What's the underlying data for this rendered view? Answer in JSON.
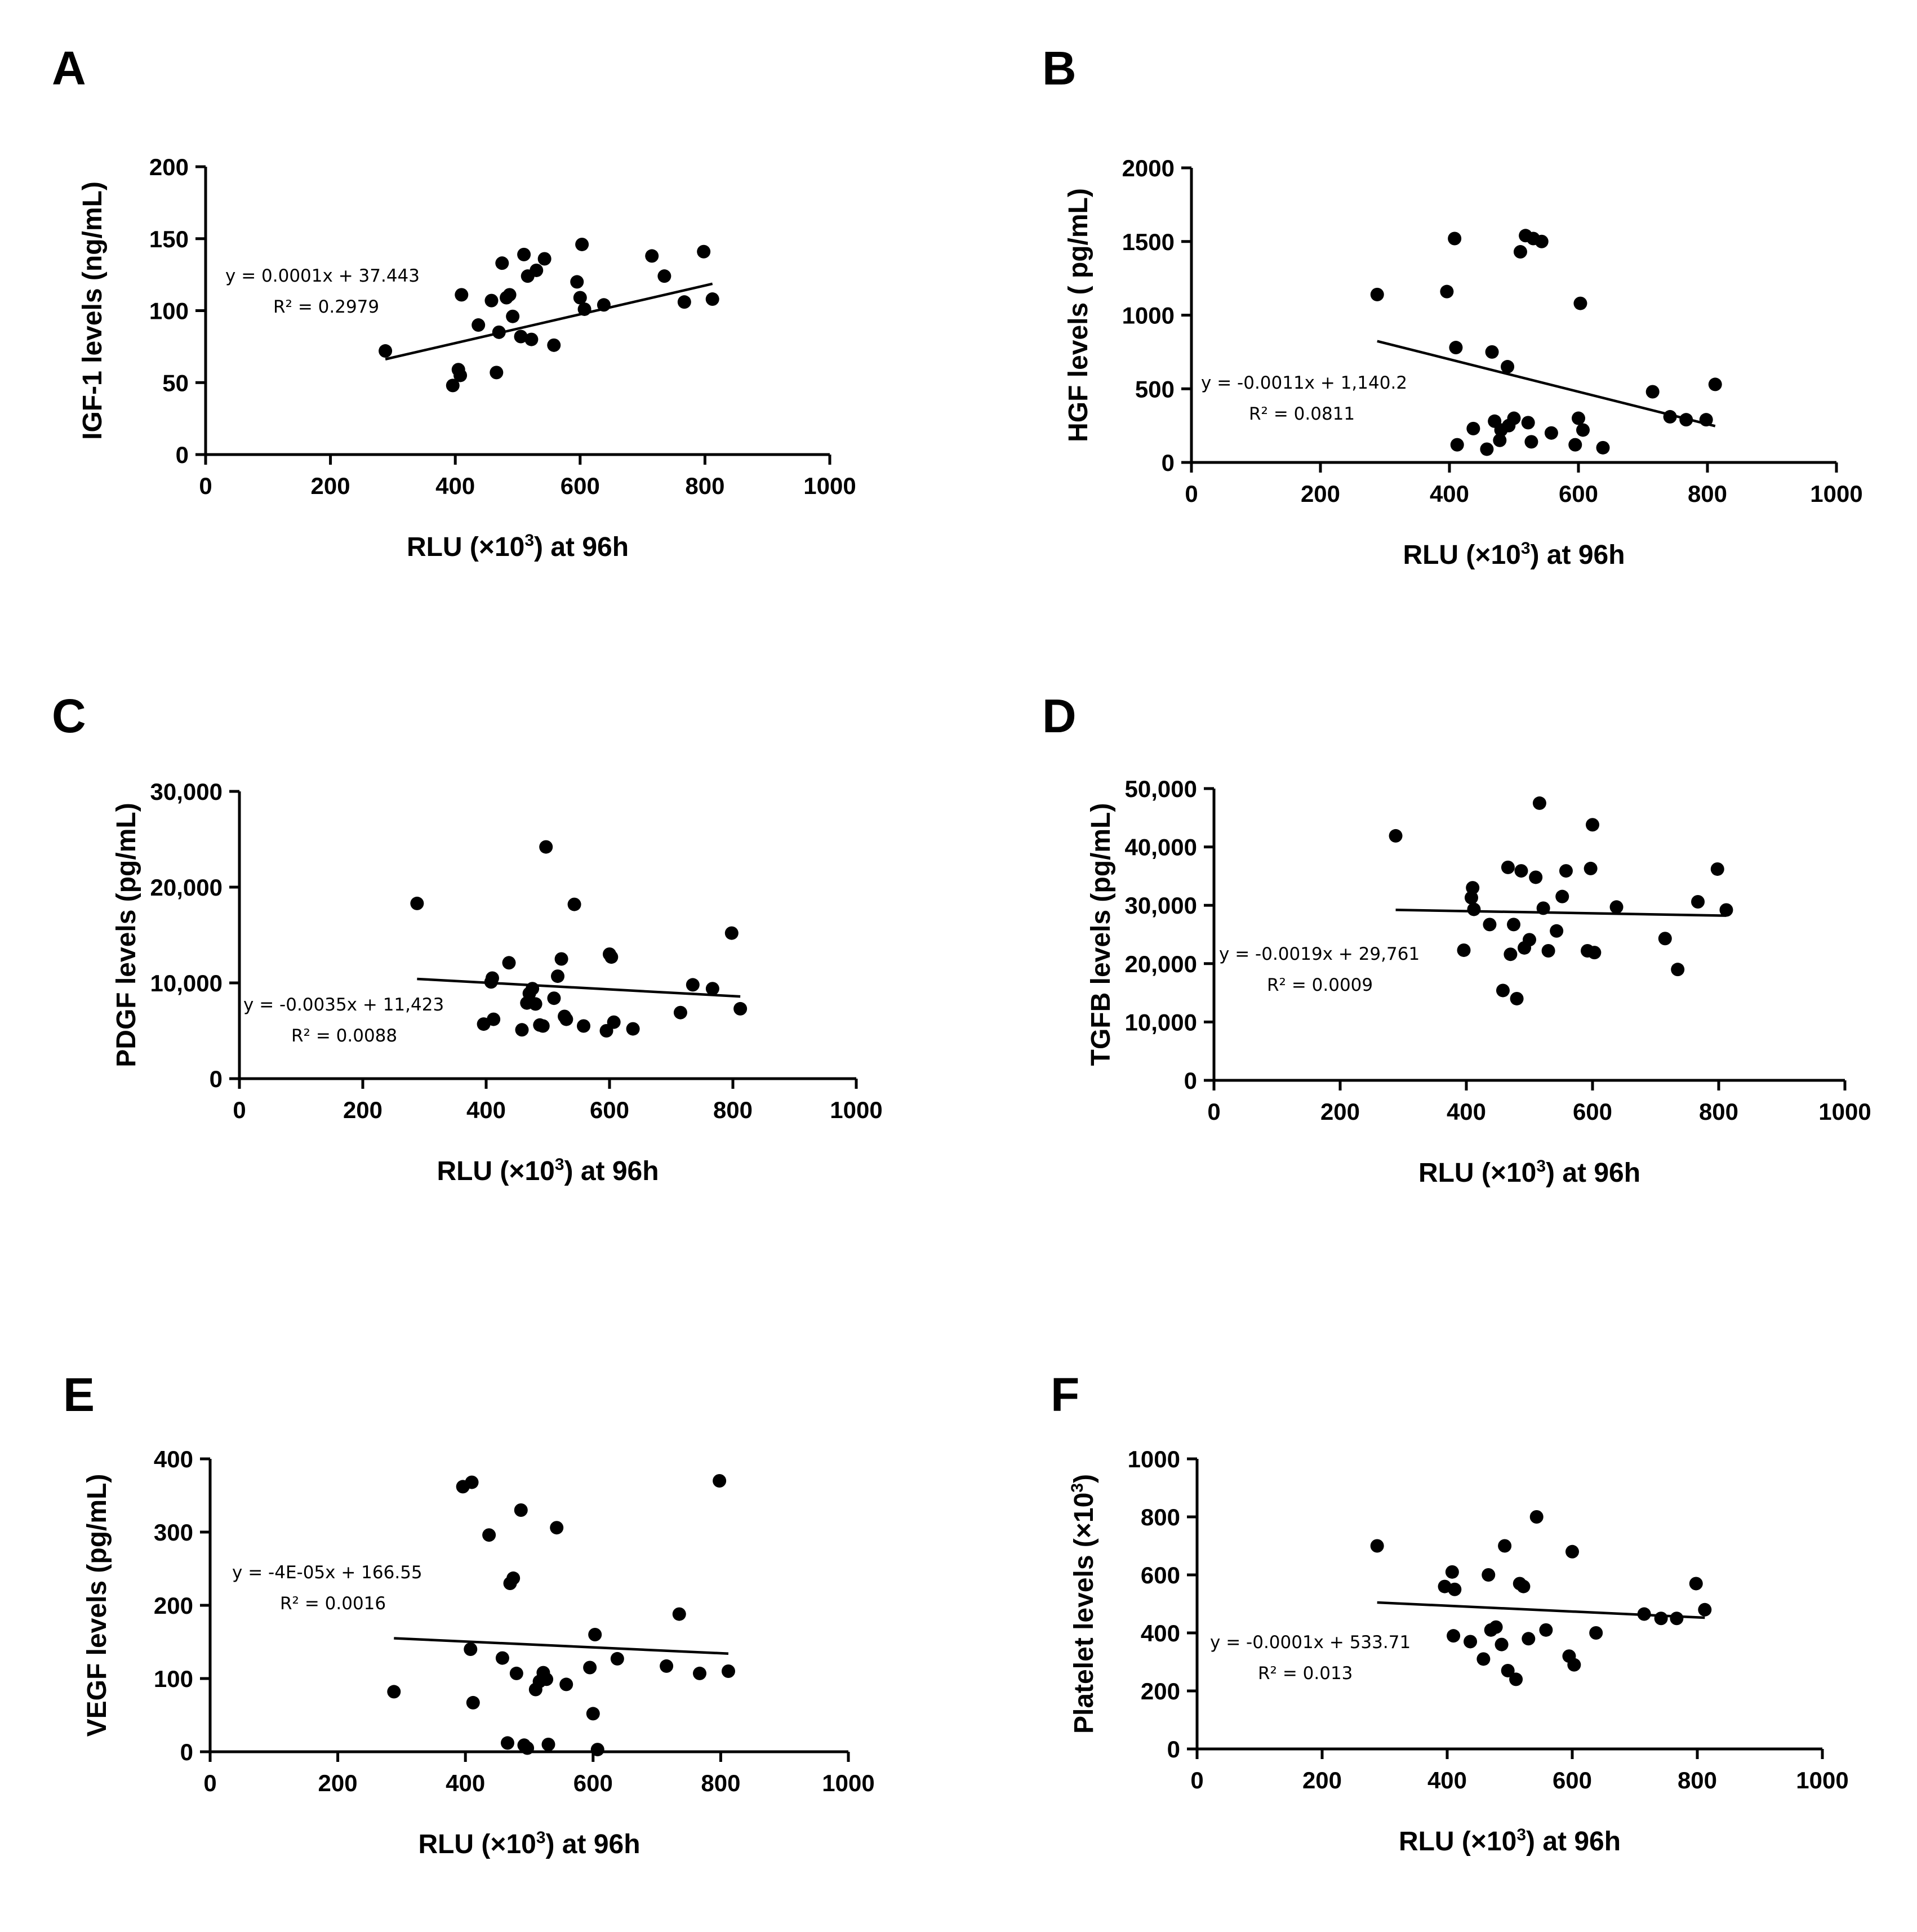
{
  "figure": {
    "background": "#ffffff",
    "ink": "#000000"
  },
  "chart_data": [
    {
      "panel": "A",
      "type": "scatter",
      "title": "",
      "xlabel": "RLU (×10³) at 96h",
      "xlabel_parts": {
        "before": "RLU (×10",
        "sup": "3",
        "after": ") at 96h"
      },
      "ylabel": "IGF-1 levels (ng/mL)",
      "xlim": [
        0,
        1000
      ],
      "ylim": [
        0,
        200
      ],
      "xticks": [
        0,
        200,
        400,
        600,
        800,
        1000
      ],
      "yticks": [
        0,
        50,
        100,
        150,
        200
      ],
      "xtick_labels": [
        "0",
        "200",
        "400",
        "600",
        "800",
        "1000"
      ],
      "ytick_labels": [
        "0",
        "50",
        "100",
        "150",
        "200"
      ],
      "grid": false,
      "trendline": {
        "slope": 0.1,
        "intercept": 37.443,
        "x_range": [
          288,
          812
        ]
      },
      "annotation": {
        "line1": "y = 0.0001x + 37.443",
        "line2": "R² = 0.2979"
      },
      "x": [
        288,
        396,
        405,
        408,
        410,
        437,
        458,
        466,
        470,
        475,
        482,
        487,
        492,
        505,
        510,
        516,
        522,
        530,
        543,
        558,
        595,
        600,
        603,
        607,
        638,
        715,
        735,
        767,
        798,
        812
      ],
      "y": [
        72,
        48,
        59,
        55,
        111,
        90,
        107,
        57,
        85,
        133,
        109,
        111,
        96,
        82,
        139,
        124,
        80,
        128,
        136,
        76,
        120,
        109,
        146,
        101,
        104,
        138,
        124,
        106,
        141,
        108
      ]
    },
    {
      "panel": "B",
      "type": "scatter",
      "title": "",
      "xlabel": "RLU (×10³) at 96h",
      "xlabel_parts": {
        "before": "RLU (×10",
        "sup": "3",
        "after": ") at 96h"
      },
      "ylabel": "HGF levels ( pg/mL)",
      "xlim": [
        0,
        1000
      ],
      "ylim": [
        0,
        2000
      ],
      "xticks": [
        0,
        200,
        400,
        600,
        800,
        1000
      ],
      "yticks": [
        0,
        500,
        1000,
        1500,
        2000
      ],
      "xtick_labels": [
        "0",
        "200",
        "400",
        "600",
        "800",
        "1000"
      ],
      "ytick_labels": [
        "0",
        "500",
        "1000",
        "1500",
        "2000"
      ],
      "grid": false,
      "trendline": {
        "slope": -1.1,
        "intercept": 1140.2,
        "x_range": [
          288,
          812
        ]
      },
      "annotation": {
        "line1": "y = -0.0011x + 1,140.2",
        "line2": "R² = 0.0811"
      },
      "x": [
        288,
        396,
        408,
        410,
        412,
        437,
        458,
        466,
        470,
        478,
        480,
        490,
        492,
        500,
        510,
        518,
        522,
        527,
        530,
        543,
        558,
        595,
        600,
        603,
        607,
        638,
        715,
        742,
        767,
        798,
        812
      ],
      "y": [
        1140,
        1160,
        1520,
        780,
        120,
        230,
        90,
        750,
        280,
        150,
        220,
        650,
        250,
        300,
        1430,
        1540,
        270,
        140,
        1520,
        1500,
        200,
        120,
        300,
        1080,
        220,
        100,
        480,
        310,
        290,
        290,
        530
      ]
    },
    {
      "panel": "C",
      "type": "scatter",
      "title": "",
      "xlabel": "RLU (×10³) at 96h",
      "xlabel_parts": {
        "before": "RLU (×10",
        "sup": "3",
        "after": ") at 96h"
      },
      "ylabel": "PDGF levels (pg/mL)",
      "xlim": [
        0,
        1000
      ],
      "ylim": [
        0,
        30000
      ],
      "xticks": [
        0,
        200,
        400,
        600,
        800,
        1000
      ],
      "yticks": [
        0,
        10000,
        20000,
        30000
      ],
      "xtick_labels": [
        "0",
        "200",
        "400",
        "600",
        "800",
        "1000"
      ],
      "ytick_labels": [
        "0",
        "10,000",
        "20,000",
        "30,000"
      ],
      "grid": false,
      "trendline": {
        "slope": -3.5,
        "intercept": 11423,
        "x_range": [
          288,
          812
        ]
      },
      "annotation": {
        "line1": "y = -0.0035x + 11,423",
        "line2": "R² = 0.0088"
      },
      "x": [
        288,
        396,
        408,
        410,
        412,
        437,
        458,
        466,
        470,
        475,
        480,
        487,
        492,
        497,
        510,
        516,
        522,
        527,
        530,
        543,
        558,
        595,
        600,
        603,
        607,
        638,
        715,
        735,
        767,
        798,
        812
      ],
      "y": [
        18300,
        5700,
        10100,
        10500,
        6200,
        12100,
        5100,
        7900,
        8900,
        9400,
        7800,
        5600,
        5500,
        24200,
        8400,
        10700,
        12500,
        6500,
        6200,
        18200,
        5500,
        5000,
        13000,
        12700,
        5900,
        5200,
        6900,
        9800,
        9400,
        15200,
        7300
      ]
    },
    {
      "panel": "D",
      "type": "scatter",
      "title": "",
      "xlabel": "RLU (×10³) at 96h",
      "xlabel_parts": {
        "before": "RLU (×10",
        "sup": "3",
        "after": ") at 96h"
      },
      "ylabel": "TGFB levels (pg/mL)",
      "xlim": [
        0,
        1000
      ],
      "ylim": [
        0,
        50000
      ],
      "xticks": [
        0,
        200,
        400,
        600,
        800,
        1000
      ],
      "yticks": [
        0,
        10000,
        20000,
        30000,
        40000,
        50000
      ],
      "xtick_labels": [
        "0",
        "200",
        "400",
        "600",
        "800",
        "1000"
      ],
      "ytick_labels": [
        "0",
        "10,000",
        "20,000",
        "30,000",
        "40,000",
        "50,000"
      ],
      "grid": false,
      "trendline": {
        "slope": -1.9,
        "intercept": 29761,
        "x_range": [
          288,
          812
        ]
      },
      "annotation": {
        "line1": "y = -0.0019x + 29,761",
        "line2": "R² = 0.0009"
      },
      "x": [
        288,
        396,
        408,
        410,
        412,
        437,
        458,
        466,
        470,
        475,
        480,
        487,
        492,
        500,
        510,
        516,
        522,
        530,
        543,
        552,
        558,
        592,
        597,
        600,
        603,
        638,
        715,
        735,
        767,
        798,
        812
      ],
      "y": [
        41900,
        22300,
        31300,
        33000,
        29300,
        26700,
        15400,
        36500,
        21600,
        26700,
        14000,
        35900,
        22700,
        24100,
        34800,
        47500,
        29500,
        22200,
        25600,
        31500,
        35900,
        22200,
        36300,
        43800,
        21900,
        29700,
        24300,
        19000,
        30600,
        36200,
        29200
      ]
    },
    {
      "panel": "E",
      "type": "scatter",
      "title": "",
      "xlabel": "RLU (×10³) at 96h",
      "xlabel_parts": {
        "before": "RLU (×10",
        "sup": "3",
        "after": ") at 96h"
      },
      "ylabel": "VEGF levels (pg/mL)",
      "xlim": [
        0,
        1000
      ],
      "ylim": [
        0,
        400
      ],
      "xticks": [
        0,
        200,
        400,
        600,
        800,
        1000
      ],
      "yticks": [
        0,
        100,
        200,
        300,
        400
      ],
      "xtick_labels": [
        "0",
        "200",
        "400",
        "600",
        "800",
        "1000"
      ],
      "ytick_labels": [
        "0",
        "100",
        "200",
        "300",
        "400"
      ],
      "grid": false,
      "trendline": {
        "slope": -0.04,
        "intercept": 166.55,
        "x_range": [
          288,
          812
        ]
      },
      "annotation": {
        "line1": "y = -4E-05x + 166.55",
        "line2": "R² = 0.0016"
      },
      "x": [
        288,
        396,
        408,
        410,
        412,
        437,
        458,
        466,
        470,
        475,
        480,
        487,
        492,
        497,
        510,
        516,
        522,
        527,
        530,
        543,
        558,
        595,
        600,
        603,
        607,
        638,
        715,
        735,
        767,
        798,
        812
      ],
      "y": [
        82,
        362,
        140,
        368,
        67,
        296,
        128,
        12,
        230,
        237,
        107,
        330,
        9,
        5,
        85,
        96,
        108,
        99,
        10,
        306,
        92,
        115,
        52,
        160,
        3,
        127,
        117,
        188,
        107,
        370,
        110
      ]
    },
    {
      "panel": "F",
      "type": "scatter",
      "title": "",
      "xlabel": "RLU (×10³) at 96h",
      "xlabel_parts": {
        "before": "RLU (×10",
        "sup": "3",
        "after": ") at 96h"
      },
      "ylabel": "Platelet levels (×10³)",
      "ylabel_parts": {
        "before": "Platelet levels (×10",
        "sup": "3",
        "after": ")"
      },
      "xlim": [
        0,
        1000
      ],
      "ylim": [
        0,
        1000
      ],
      "xticks": [
        0,
        200,
        400,
        600,
        800,
        1000
      ],
      "yticks": [
        0,
        200,
        400,
        600,
        800,
        1000
      ],
      "xtick_labels": [
        "0",
        "200",
        "400",
        "600",
        "800",
        "1000"
      ],
      "ytick_labels": [
        "0",
        "200",
        "400",
        "600",
        "800",
        "1000"
      ],
      "grid": false,
      "trendline": {
        "slope": -0.1,
        "intercept": 533.71,
        "x_range": [
          288,
          812
        ]
      },
      "annotation": {
        "line1": "y = -0.0001x + 533.71",
        "line2": "R² = 0.013"
      },
      "x": [
        288,
        396,
        408,
        410,
        412,
        437,
        458,
        466,
        470,
        478,
        487,
        492,
        497,
        510,
        516,
        522,
        530,
        543,
        558,
        595,
        600,
        603,
        638,
        715,
        742,
        767,
        798,
        812
      ],
      "y": [
        700,
        560,
        610,
        390,
        550,
        370,
        310,
        600,
        410,
        420,
        360,
        700,
        270,
        240,
        570,
        560,
        380,
        800,
        410,
        320,
        680,
        290,
        400,
        465,
        450,
        450,
        570,
        480
      ]
    }
  ]
}
